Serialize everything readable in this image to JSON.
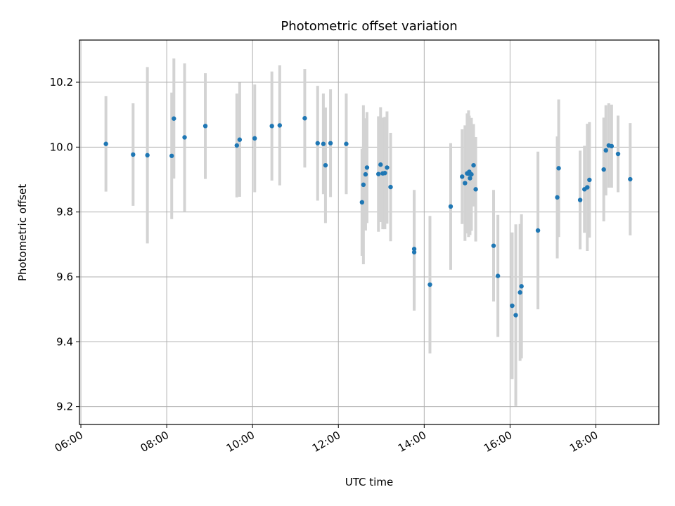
{
  "chart_data": {
    "type": "scatter",
    "title": "Photometric offset variation",
    "xlabel": "UTC time",
    "ylabel": "Photometric offset",
    "x_unit": "hours (UTC)",
    "xlim": [
      "05:58",
      "19:28"
    ],
    "ylim": [
      9.145,
      10.33
    ],
    "x_ticks": [
      "06:00",
      "08:00",
      "10:00",
      "12:00",
      "14:00",
      "16:00",
      "18:00"
    ],
    "y_ticks": [
      "9.2",
      "9.4",
      "9.6",
      "9.8",
      "10.0",
      "10.2"
    ],
    "grid": true,
    "point_color": "#1f77b4",
    "errorbar_color": "#d3d3d3",
    "series": [
      {
        "x": [
          "06:35",
          "07:13",
          "07:33",
          "08:07",
          "08:10",
          "08:25",
          "08:54",
          "09:38",
          "09:42",
          "10:03",
          "10:27",
          "10:38",
          "11:13",
          "11:31",
          "11:39",
          "11:42",
          "11:49",
          "12:11",
          "12:33",
          "12:35",
          "12:38",
          "12:40",
          "12:56",
          "12:59",
          "13:02",
          "13:05",
          "13:08",
          "13:13",
          "13:46",
          "13:46",
          "14:08",
          "14:37",
          "14:53",
          "14:57",
          "15:00",
          "15:02",
          "15:03",
          "15:04",
          "15:06",
          "15:09",
          "15:12",
          "15:37",
          "15:43",
          "16:03",
          "16:08",
          "16:14",
          "16:16",
          "16:39",
          "17:06",
          "17:08",
          "17:38",
          "17:44",
          "17:48",
          "17:51",
          "18:11",
          "18:14",
          "18:18",
          "18:22",
          "18:31",
          "18:48"
        ],
        "y": [
          10.01,
          9.977,
          9.975,
          9.973,
          10.088,
          10.03,
          10.065,
          10.005,
          10.023,
          10.027,
          10.065,
          10.067,
          10.089,
          10.012,
          10.01,
          9.944,
          10.012,
          10.01,
          9.83,
          9.884,
          9.916,
          9.937,
          9.917,
          9.946,
          9.919,
          9.92,
          9.937,
          9.877,
          9.686,
          9.676,
          9.576,
          9.817,
          9.909,
          9.889,
          9.919,
          9.918,
          9.924,
          9.904,
          9.916,
          9.944,
          9.87,
          9.696,
          9.603,
          9.511,
          9.482,
          9.552,
          9.571,
          9.743,
          9.845,
          9.935,
          9.837,
          9.87,
          9.876,
          9.899,
          9.931,
          9.99,
          10.005,
          10.003,
          9.979,
          9.901
        ],
        "yerr": [
          0.147,
          0.158,
          0.272,
          0.195,
          0.185,
          0.228,
          0.163,
          0.16,
          0.176,
          0.166,
          0.168,
          0.185,
          0.152,
          0.177,
          0.155,
          0.178,
          0.166,
          0.155,
          0.165,
          0.245,
          0.173,
          0.171,
          0.178,
          0.177,
          0.172,
          0.173,
          0.173,
          0.167,
          0.182,
          0.18,
          0.212,
          0.195,
          0.146,
          0.178,
          0.185,
          0.195,
          0.173,
          0.175,
          0.174,
          0.127,
          0.161,
          0.172,
          0.188,
          0.226,
          0.28,
          0.211,
          0.222,
          0.243,
          0.188,
          0.212,
          0.152,
          0.134,
          0.196,
          0.178,
          0.16,
          0.139,
          0.13,
          0.128,
          0.118,
          0.173
        ]
      }
    ]
  }
}
